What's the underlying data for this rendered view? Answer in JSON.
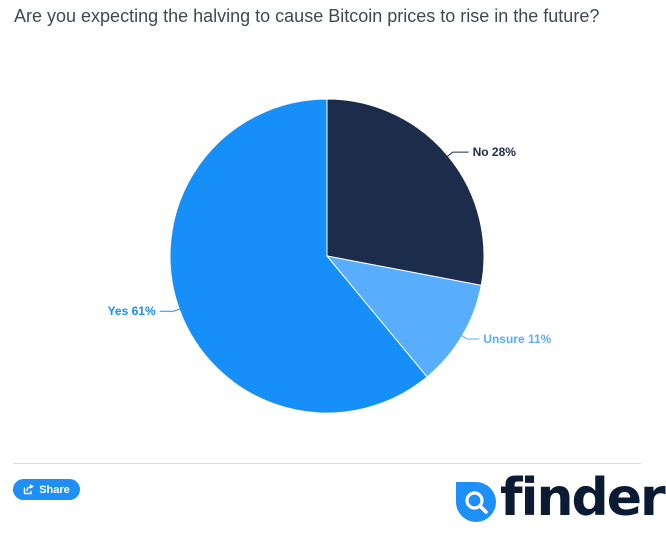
{
  "title": "Are you expecting the halving to cause Bitcoin prices to rise in the future?",
  "chart_data": {
    "type": "pie",
    "title": "Are you expecting the halving to cause Bitcoin prices to rise in the future?",
    "start_angle_deg": 0,
    "direction": "clockwise",
    "slices": [
      {
        "label": "No",
        "value": 28,
        "display": "No 28%",
        "color": "#1b2d4b",
        "label_color": "#1b2d4b"
      },
      {
        "label": "Unsure",
        "value": 11,
        "display": "Unsure 11%",
        "color": "#58aefc",
        "label_color": "#58aefc"
      },
      {
        "label": "Yes",
        "value": 61,
        "display": "Yes 61%",
        "color": "#168ff8",
        "label_color": "#168ff8"
      }
    ]
  },
  "footer": {
    "share_label": "Share",
    "share_icon": "share-icon",
    "logo_text": "finder",
    "logo_icon": "finder-search-icon",
    "accent": "#1d8ff6",
    "logo_color": "#0b1b33"
  }
}
